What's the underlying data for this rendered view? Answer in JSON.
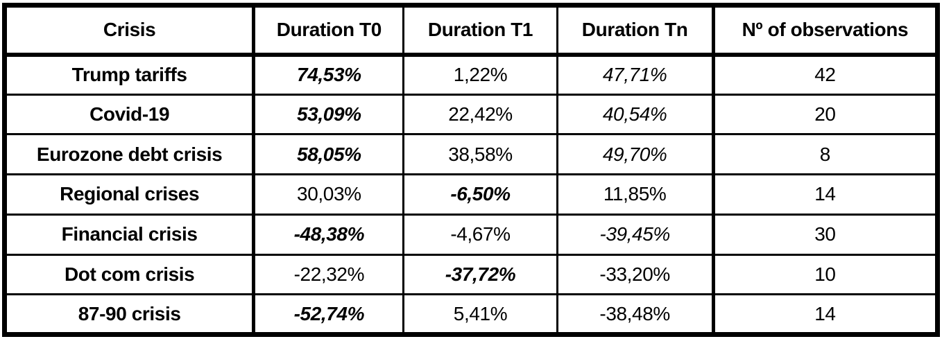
{
  "colors": {
    "border": "#000000",
    "text": "#000000",
    "background": "#ffffff"
  },
  "table": {
    "columns": [
      {
        "label": "Crisis"
      },
      {
        "label": "Duration T0"
      },
      {
        "label": "Duration T1"
      },
      {
        "label": "Duration Tn"
      },
      {
        "label": "Nº of observations"
      }
    ],
    "rows": [
      {
        "cells": [
          {
            "text": "Trump tariffs",
            "style": "bold"
          },
          {
            "text": "74,53%",
            "style": "bold-italic"
          },
          {
            "text": "1,22%",
            "style": "regular"
          },
          {
            "text": "47,71%",
            "style": "italic"
          },
          {
            "text": "42",
            "style": "regular"
          }
        ]
      },
      {
        "cells": [
          {
            "text": "Covid-19",
            "style": "bold"
          },
          {
            "text": "53,09%",
            "style": "bold-italic"
          },
          {
            "text": "22,42%",
            "style": "regular"
          },
          {
            "text": "40,54%",
            "style": "italic"
          },
          {
            "text": "20",
            "style": "regular"
          }
        ]
      },
      {
        "cells": [
          {
            "text": "Eurozone debt crisis",
            "style": "bold"
          },
          {
            "text": "58,05%",
            "style": "bold-italic"
          },
          {
            "text": "38,58%",
            "style": "regular"
          },
          {
            "text": "49,70%",
            "style": "italic"
          },
          {
            "text": "8",
            "style": "regular"
          }
        ]
      },
      {
        "cells": [
          {
            "text": "Regional crises",
            "style": "bold"
          },
          {
            "text": "30,03%",
            "style": "regular"
          },
          {
            "text": "-6,50%",
            "style": "bold-italic"
          },
          {
            "text": "11,85%",
            "style": "regular"
          },
          {
            "text": "14",
            "style": "regular"
          }
        ]
      },
      {
        "cells": [
          {
            "text": "Financial crisis",
            "style": "bold"
          },
          {
            "text": "-48,38%",
            "style": "bold-italic"
          },
          {
            "text": "-4,67%",
            "style": "regular"
          },
          {
            "text": "-39,45%",
            "style": "italic"
          },
          {
            "text": "30",
            "style": "regular"
          }
        ]
      },
      {
        "cells": [
          {
            "text": "Dot com crisis",
            "style": "bold"
          },
          {
            "text": "-22,32%",
            "style": "regular"
          },
          {
            "text": "-37,72%",
            "style": "bold-italic"
          },
          {
            "text": "-33,20%",
            "style": "regular"
          },
          {
            "text": "10",
            "style": "regular"
          }
        ]
      },
      {
        "cells": [
          {
            "text": "87-90 crisis",
            "style": "bold"
          },
          {
            "text": "-52,74%",
            "style": "bold-italic"
          },
          {
            "text": "5,41%",
            "style": "regular"
          },
          {
            "text": "-38,48%",
            "style": "regular"
          },
          {
            "text": "14",
            "style": "regular"
          }
        ]
      }
    ]
  }
}
